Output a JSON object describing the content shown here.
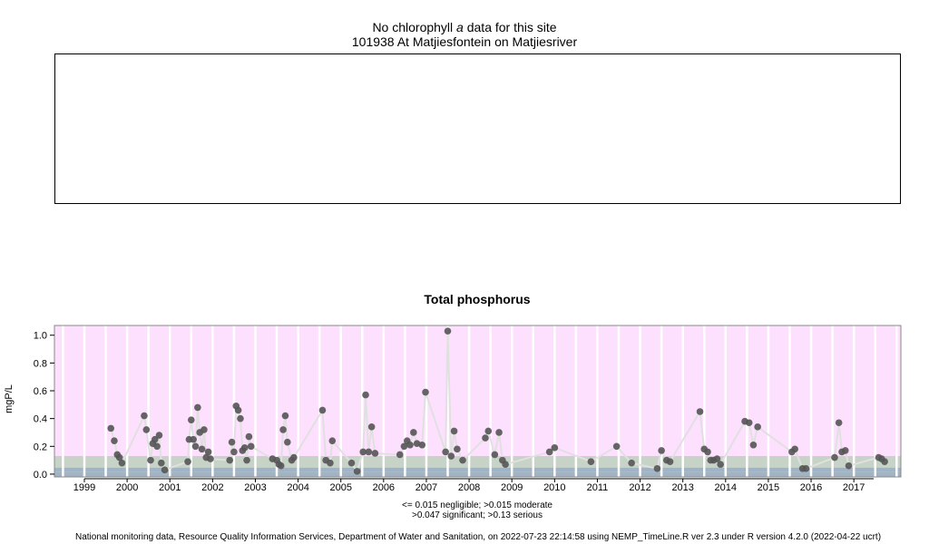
{
  "chlorophyll_panel": {
    "title_prefix": "No chlorophyll",
    "title_italic": "a",
    "title_suffix": "data for this site",
    "site": "101938 At Matjiesfontein on Matjiesriver"
  },
  "legend_lines": [
    "<= 0.015 negligible; >0.015 moderate",
    ">0.047 significant; >0.13 serious"
  ],
  "footer": "National monitoring data, Resource Quality Information Services, Department of Water and Sanitation, on 2022-07-23 22:14:58 using NEMP_TimeLine.R ver 2.3 under R version 4.2.0 (2022-04-22 ucrt)",
  "colors": {
    "serious_band": "#fde0fd",
    "significant_band": "#c6d3c6",
    "moderate_band": "#a0b4c4",
    "points": "#555555",
    "line": "#e0e0e0"
  },
  "chart_data": {
    "type": "scatter",
    "title": "Total phosphorus",
    "ylabel": "mgP/L",
    "xlim": [
      1998.3,
      2018.1
    ],
    "ylim": [
      -0.02,
      1.07
    ],
    "yticks": [
      "0.0",
      "0.2",
      "0.4",
      "0.6",
      "0.8",
      "1.0"
    ],
    "xticks": [
      "1999",
      "2000",
      "2001",
      "2002",
      "2003",
      "2004",
      "2005",
      "2006",
      "2007",
      "2008",
      "2009",
      "2010",
      "2011",
      "2012",
      "2013",
      "2014",
      "2015",
      "2016",
      "2017"
    ],
    "thresholds": [
      {
        "label": "negligible",
        "max": 0.015
      },
      {
        "label": "moderate",
        "max": 0.047
      },
      {
        "label": "significant",
        "max": 0.13
      },
      {
        "label": "serious",
        "max": null
      }
    ],
    "grid": true,
    "x": [
      1999.62,
      1999.7,
      1999.77,
      1999.82,
      1999.88,
      2000.4,
      2000.45,
      2000.55,
      2000.6,
      2000.65,
      2000.7,
      2000.75,
      2000.8,
      2000.88,
      2001.42,
      2001.45,
      2001.5,
      2001.55,
      2001.6,
      2001.65,
      2001.7,
      2001.75,
      2001.8,
      2001.85,
      2001.9,
      2001.95,
      2002.4,
      2002.45,
      2002.5,
      2002.55,
      2002.6,
      2002.65,
      2002.7,
      2002.75,
      2002.8,
      2002.85,
      2002.9,
      2003.4,
      2003.5,
      2003.55,
      2003.6,
      2003.65,
      2003.7,
      2003.75,
      2003.85,
      2003.9,
      2004.57,
      2004.65,
      2004.75,
      2004.8,
      2005.25,
      2005.38,
      2005.52,
      2005.58,
      2005.65,
      2005.72,
      2005.8,
      2006.38,
      2006.48,
      2006.55,
      2006.62,
      2006.7,
      2006.78,
      2006.9,
      2006.98,
      2007.45,
      2007.5,
      2007.58,
      2007.65,
      2007.72,
      2007.85,
      2008.38,
      2008.45,
      2008.6,
      2008.7,
      2008.78,
      2008.85,
      2009.88,
      2010.0,
      2010.85,
      2011.45,
      2011.8,
      2012.4,
      2012.5,
      2012.62,
      2012.7,
      2013.4,
      2013.5,
      2013.58,
      2013.65,
      2013.72,
      2013.8,
      2013.88,
      2014.45,
      2014.55,
      2014.65,
      2014.75,
      2015.55,
      2015.62,
      2015.8,
      2015.88,
      2016.55,
      2016.65,
      2016.72,
      2016.8,
      2016.88,
      2017.58,
      2017.65,
      2017.72
    ],
    "y": [
      0.33,
      0.24,
      0.14,
      0.12,
      0.08,
      0.42,
      0.32,
      0.1,
      0.22,
      0.25,
      0.2,
      0.28,
      0.08,
      0.03,
      0.09,
      0.25,
      0.39,
      0.25,
      0.2,
      0.48,
      0.3,
      0.18,
      0.32,
      0.12,
      0.16,
      0.11,
      0.1,
      0.23,
      0.16,
      0.49,
      0.46,
      0.4,
      0.17,
      0.19,
      0.1,
      0.27,
      0.2,
      0.11,
      0.1,
      0.07,
      0.06,
      0.32,
      0.42,
      0.23,
      0.1,
      0.12,
      0.46,
      0.1,
      0.08,
      0.24,
      0.08,
      0.02,
      0.16,
      0.57,
      0.16,
      0.34,
      0.15,
      0.14,
      0.2,
      0.24,
      0.21,
      0.3,
      0.22,
      0.21,
      0.59,
      0.16,
      1.03,
      0.13,
      0.31,
      0.18,
      0.1,
      0.26,
      0.31,
      0.14,
      0.3,
      0.1,
      0.07,
      0.16,
      0.19,
      0.09,
      0.2,
      0.08,
      0.04,
      0.17,
      0.1,
      0.09,
      0.45,
      0.18,
      0.16,
      0.1,
      0.1,
      0.11,
      0.07,
      0.38,
      0.37,
      0.21,
      0.34,
      0.16,
      0.18,
      0.04,
      0.04,
      0.12,
      0.37,
      0.16,
      0.17,
      0.06,
      0.12,
      0.11,
      0.09
    ]
  }
}
